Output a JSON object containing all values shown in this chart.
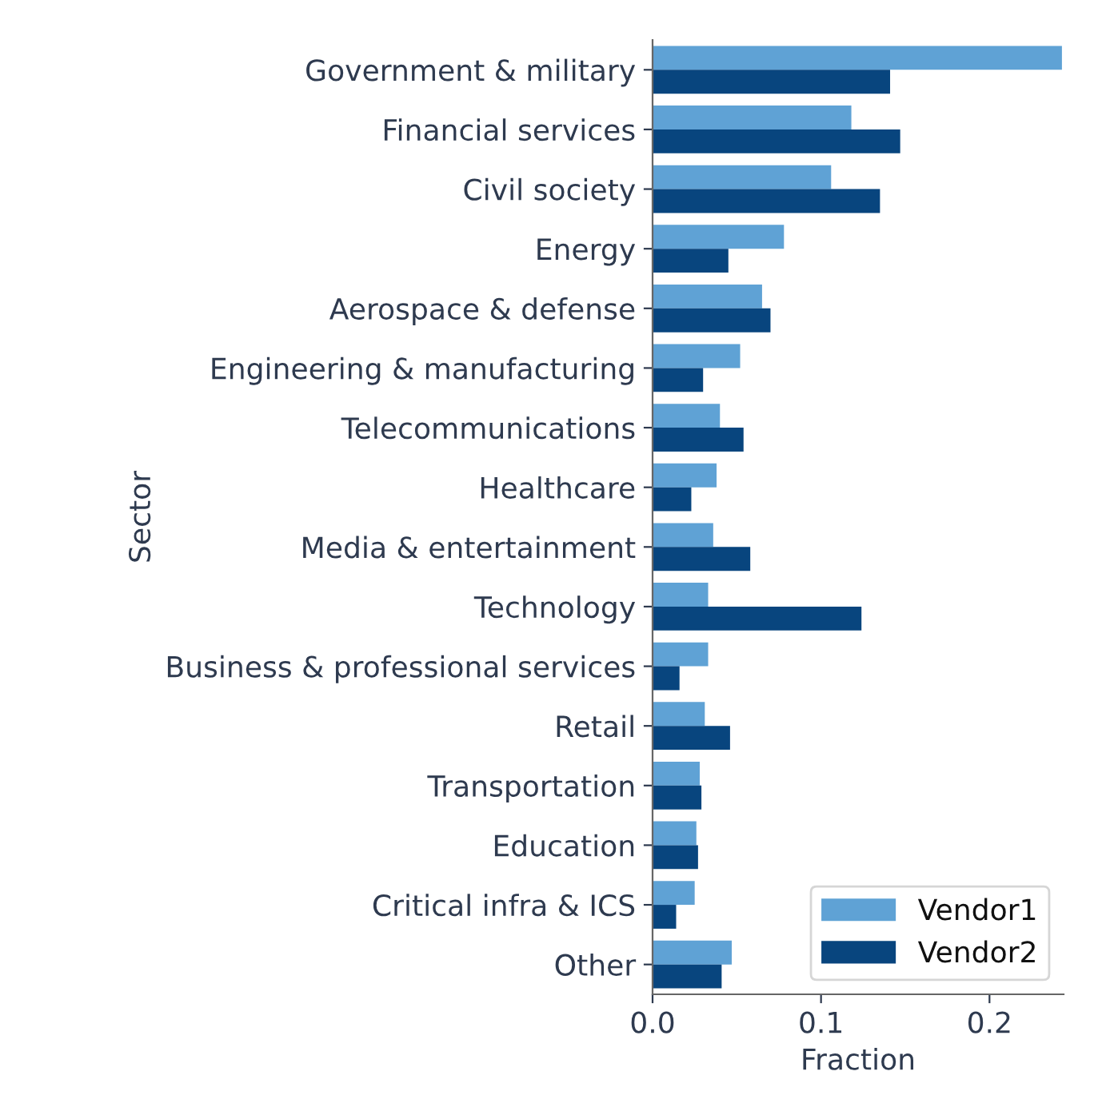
{
  "chart_data": {
    "type": "bar",
    "orientation": "horizontal",
    "xlabel": "Fraction",
    "ylabel": "Sector",
    "categories": [
      "Government & military",
      "Financial services",
      "Civil society",
      "Energy",
      "Aerospace & defense",
      "Engineering & manufacturing",
      "Telecommunications",
      "Healthcare",
      "Media & entertainment",
      "Technology",
      "Business & professional services",
      "Retail",
      "Transportation",
      "Education",
      "Critical infra & ICS",
      "Other"
    ],
    "series": [
      {
        "name": "Vendor1",
        "color": "#5fa2d5",
        "values": [
          0.243,
          0.118,
          0.106,
          0.078,
          0.065,
          0.052,
          0.04,
          0.038,
          0.036,
          0.033,
          0.033,
          0.031,
          0.028,
          0.026,
          0.025,
          0.047
        ]
      },
      {
        "name": "Vendor2",
        "color": "#08457e",
        "values": [
          0.141,
          0.147,
          0.135,
          0.045,
          0.07,
          0.03,
          0.054,
          0.023,
          0.058,
          0.124,
          0.016,
          0.046,
          0.029,
          0.027,
          0.014,
          0.041
        ]
      }
    ],
    "xlim": [
      0,
      0.244
    ],
    "xticks": [
      {
        "value": 0,
        "label": "0.0"
      },
      0.1,
      0.2
    ],
    "grid": false,
    "legend": "bottom right"
  }
}
